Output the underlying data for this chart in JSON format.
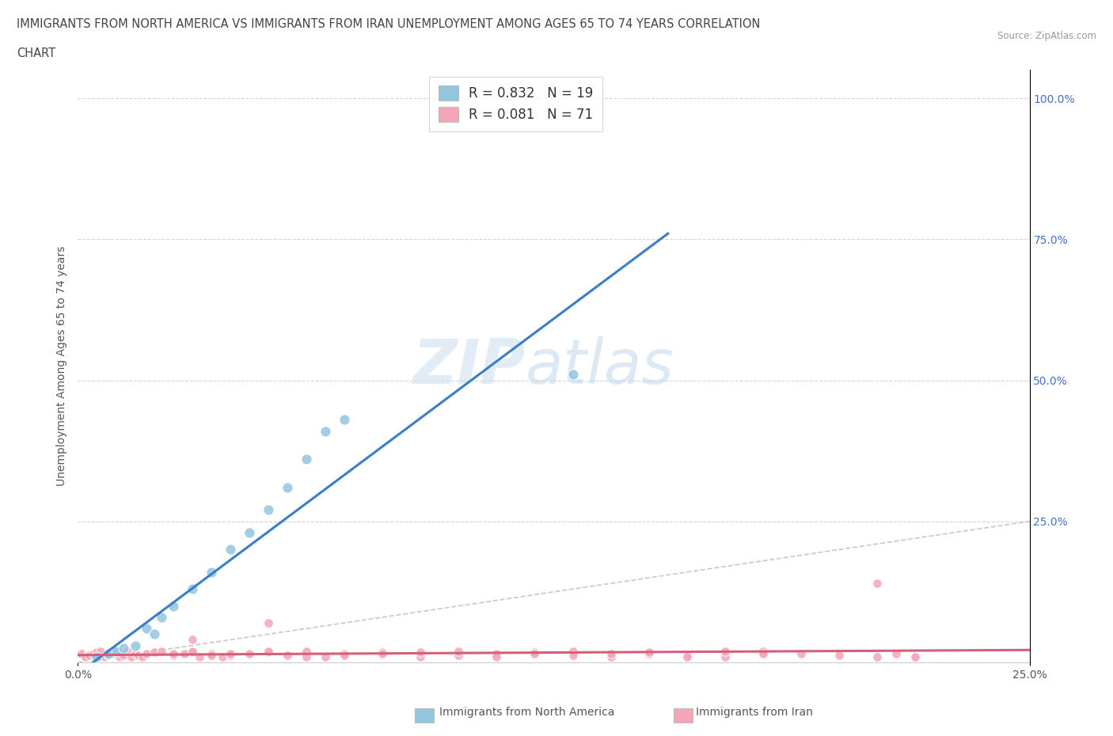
{
  "title_line1": "IMMIGRANTS FROM NORTH AMERICA VS IMMIGRANTS FROM IRAN UNEMPLOYMENT AMONG AGES 65 TO 74 YEARS CORRELATION",
  "title_line2": "CHART",
  "source": "Source: ZipAtlas.com",
  "ylabel": "Unemployment Among Ages 65 to 74 years",
  "xlim": [
    0.0,
    0.25
  ],
  "ylim": [
    0.0,
    1.05
  ],
  "legend_r1": "R = 0.832",
  "legend_n1": "N = 19",
  "legend_r2": "R = 0.081",
  "legend_n2": "N = 71",
  "color_blue": "#92c5de",
  "color_pink": "#f4a6b8",
  "color_blue_line": "#3a7dc9",
  "color_pink_line": "#d45f7a",
  "color_diagonal": "#bbbbbb",
  "scatter_blue_x": [
    0.005,
    0.008,
    0.01,
    0.012,
    0.015,
    0.018,
    0.02,
    0.022,
    0.025,
    0.03,
    0.035,
    0.04,
    0.045,
    0.05,
    0.055,
    0.06,
    0.065,
    0.07,
    0.13
  ],
  "scatter_blue_y": [
    0.01,
    0.015,
    0.02,
    0.025,
    0.03,
    0.06,
    0.05,
    0.08,
    0.1,
    0.13,
    0.16,
    0.2,
    0.23,
    0.27,
    0.31,
    0.36,
    0.41,
    0.43,
    0.51
  ],
  "scatter_pink_x": [
    0.001,
    0.002,
    0.003,
    0.004,
    0.005,
    0.006,
    0.007,
    0.008,
    0.009,
    0.01,
    0.011,
    0.012,
    0.013,
    0.014,
    0.015,
    0.016,
    0.017,
    0.018,
    0.02,
    0.022,
    0.025,
    0.028,
    0.03,
    0.032,
    0.035,
    0.038,
    0.04,
    0.045,
    0.05,
    0.055,
    0.06,
    0.065,
    0.07,
    0.08,
    0.09,
    0.1,
    0.11,
    0.12,
    0.13,
    0.14,
    0.15,
    0.16,
    0.17,
    0.18,
    0.19,
    0.2,
    0.21,
    0.215,
    0.22,
    0.025,
    0.03,
    0.035,
    0.04,
    0.05,
    0.06,
    0.07,
    0.08,
    0.09,
    0.1,
    0.11,
    0.12,
    0.13,
    0.14,
    0.15,
    0.16,
    0.17,
    0.18,
    0.03,
    0.05,
    0.21,
    0.22
  ],
  "scatter_pink_y": [
    0.015,
    0.01,
    0.012,
    0.015,
    0.018,
    0.02,
    0.01,
    0.012,
    0.015,
    0.018,
    0.01,
    0.012,
    0.02,
    0.01,
    0.015,
    0.012,
    0.01,
    0.015,
    0.018,
    0.02,
    0.012,
    0.015,
    0.018,
    0.01,
    0.015,
    0.01,
    0.012,
    0.015,
    0.018,
    0.012,
    0.02,
    0.01,
    0.015,
    0.018,
    0.01,
    0.012,
    0.015,
    0.018,
    0.02,
    0.01,
    0.015,
    0.012,
    0.01,
    0.02,
    0.015,
    0.012,
    0.01,
    0.015,
    0.01,
    0.015,
    0.02,
    0.012,
    0.015,
    0.02,
    0.01,
    0.012,
    0.015,
    0.018,
    0.02,
    0.01,
    0.015,
    0.012,
    0.015,
    0.018,
    0.01,
    0.02,
    0.015,
    0.04,
    0.07,
    0.14,
    0.01
  ],
  "blue_trend_x": [
    0.0,
    0.155
  ],
  "blue_trend_y": [
    -0.02,
    0.76
  ],
  "pink_trend_x": [
    0.0,
    0.25
  ],
  "pink_trend_y": [
    0.013,
    0.022
  ]
}
